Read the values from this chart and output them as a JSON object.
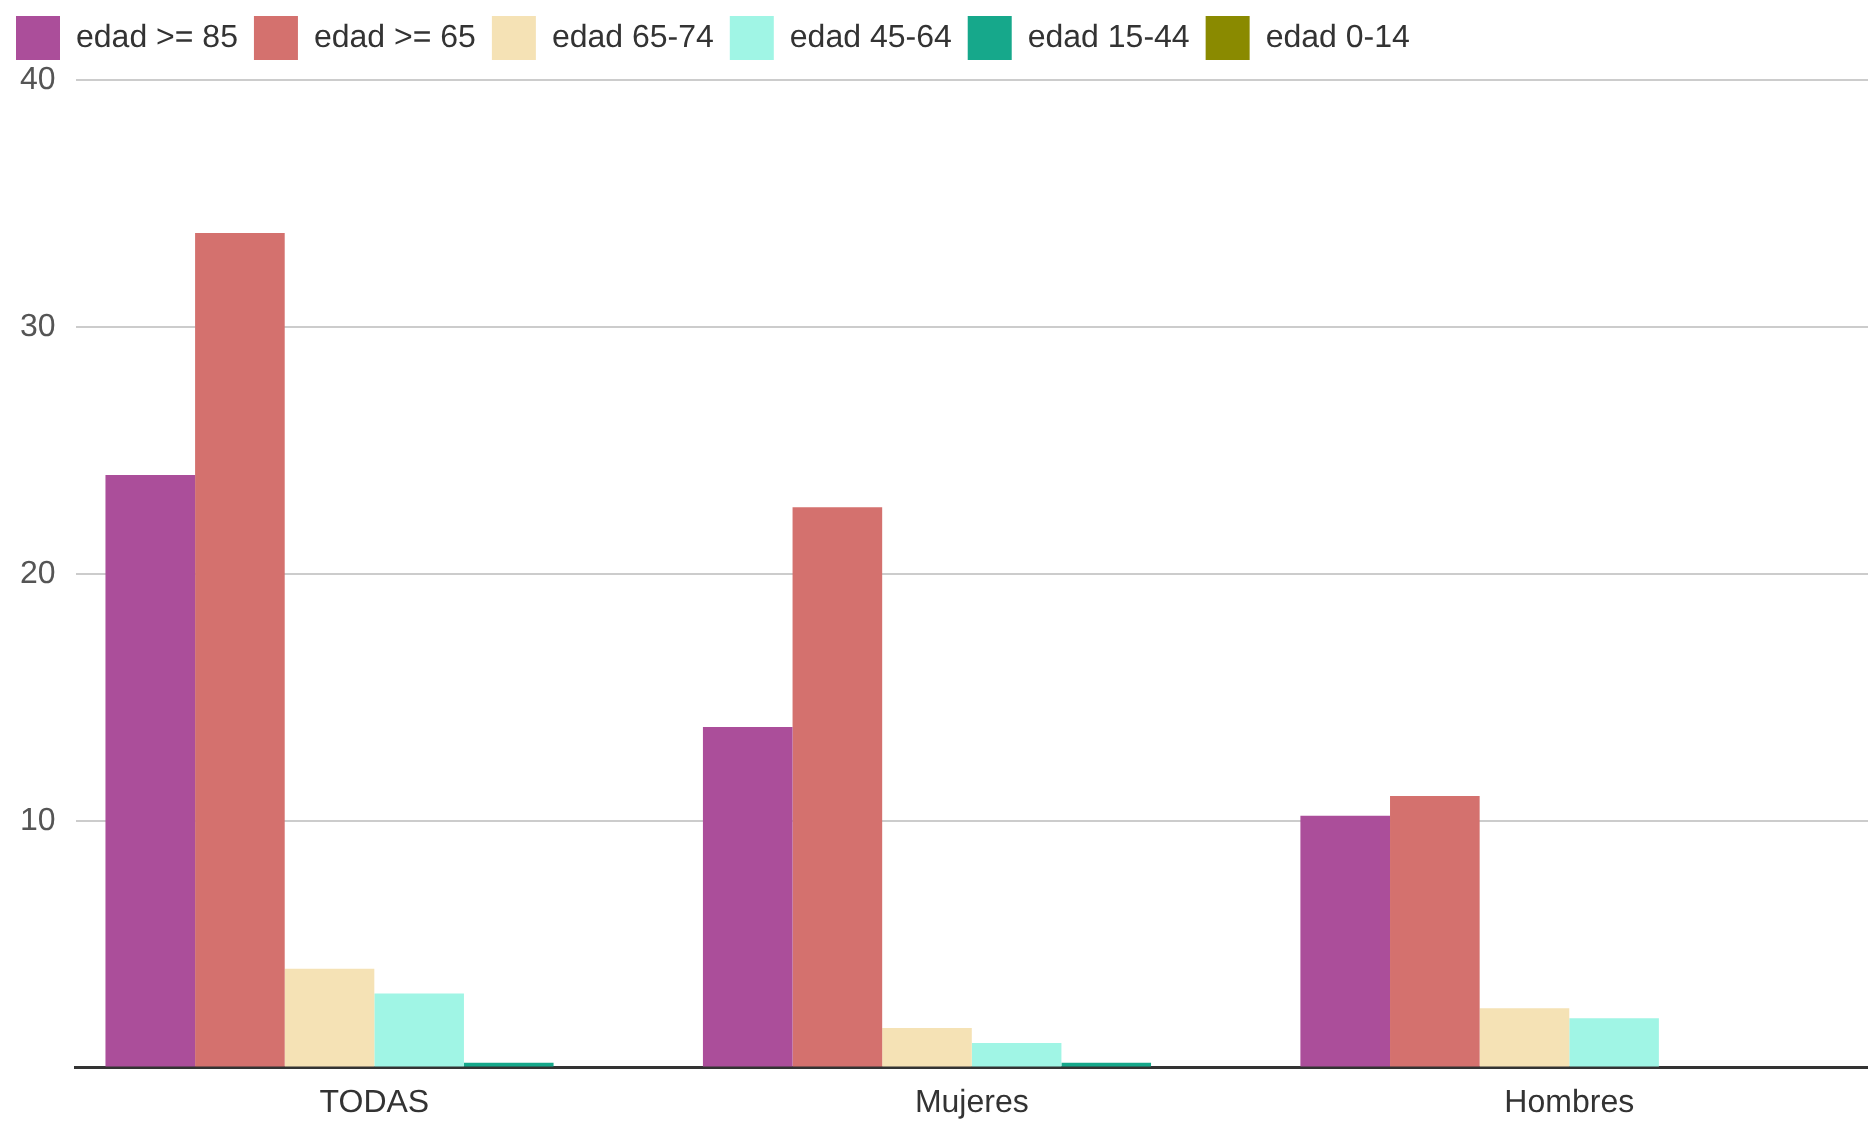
{
  "chart_data": {
    "type": "bar",
    "categories": [
      "TODAS",
      "Mujeres",
      "Hombres"
    ],
    "series": [
      {
        "name": "edad >= 85",
        "color": "#ab4e9a",
        "values": [
          24,
          13.8,
          10.2
        ]
      },
      {
        "name": "edad >= 65",
        "color": "#d4716e",
        "values": [
          33.8,
          22.7,
          11
        ]
      },
      {
        "name": "edad 65-74",
        "color": "#f5e2b5",
        "values": [
          4,
          1.6,
          2.4
        ]
      },
      {
        "name": "edad 45-64",
        "color": "#a0f5e5",
        "values": [
          3,
          1,
          2
        ]
      },
      {
        "name": "edad 15-44",
        "color": "#16a88b",
        "values": [
          0.2,
          0.2,
          0
        ]
      },
      {
        "name": "edad 0-14",
        "color": "#8a8a00",
        "values": [
          0,
          0,
          0
        ]
      }
    ],
    "ylim": [
      0,
      40
    ],
    "yticks": [
      {
        "value": 0,
        "label": null
      },
      10,
      20,
      30,
      40
    ],
    "grid": "y",
    "legend": "top left"
  }
}
